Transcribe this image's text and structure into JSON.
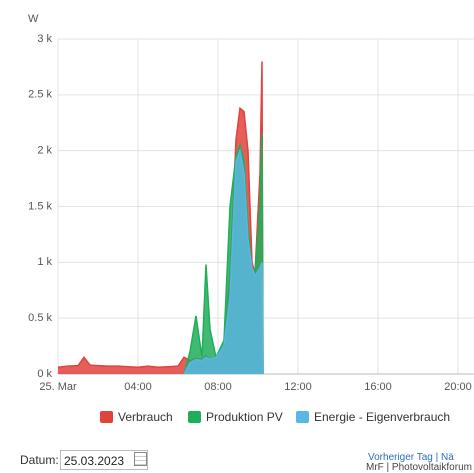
{
  "chart_data": {
    "type": "area",
    "y_label": "W",
    "x": [
      0,
      0.5,
      1,
      1.3,
      1.6,
      2,
      2.5,
      3,
      3.5,
      4,
      4.5,
      5,
      5.5,
      6,
      6.3,
      6.6,
      6.9,
      7.2,
      7.4,
      7.6,
      7.9,
      8.3,
      8.6,
      8.9,
      9.1,
      9.3,
      9.5,
      9.7,
      9.85,
      10.1,
      10.2,
      10.25
    ],
    "series": [
      {
        "name": "Verbrauch",
        "color": "#e2423c",
        "values": [
          60,
          70,
          75,
          150,
          80,
          75,
          70,
          70,
          65,
          60,
          70,
          60,
          65,
          70,
          150,
          120,
          140,
          130,
          160,
          130,
          150,
          250,
          900,
          2100,
          2380,
          2350,
          2000,
          1000,
          900,
          1800,
          2800,
          0
        ]
      },
      {
        "name": "Produktion PV",
        "color": "#1fae5a",
        "values": [
          null,
          null,
          null,
          null,
          null,
          null,
          null,
          null,
          null,
          null,
          null,
          null,
          null,
          null,
          0,
          200,
          520,
          150,
          980,
          400,
          150,
          300,
          1500,
          1950,
          2050,
          1900,
          1300,
          950,
          900,
          1500,
          2150,
          0
        ]
      },
      {
        "name": "Energie - Eigenverbrauch",
        "color": "#5ab6e2",
        "values": [
          null,
          null,
          null,
          null,
          null,
          null,
          null,
          null,
          null,
          null,
          null,
          null,
          null,
          null,
          0,
          100,
          130,
          120,
          150,
          130,
          150,
          250,
          700,
          1900,
          2000,
          1800,
          1200,
          950,
          880,
          950,
          1000,
          0
        ]
      }
    ],
    "xlim": [
      0,
      20.8
    ],
    "xticks": [
      {
        "value": 0,
        "label": "25. Mar"
      },
      {
        "value": 4,
        "label": "04:00"
      },
      {
        "value": 8,
        "label": "08:00"
      },
      {
        "value": 12,
        "label": "12:00"
      },
      {
        "value": 16,
        "label": "16:00"
      },
      {
        "value": 20,
        "label": "20:00"
      }
    ],
    "ylim": [
      0,
      3000
    ],
    "yticks": [
      {
        "value": 0,
        "label": "0 k"
      },
      {
        "value": 500,
        "label": "0.5 k"
      },
      {
        "value": 1000,
        "label": "1 k"
      },
      {
        "value": 1500,
        "label": "1.5 k"
      },
      {
        "value": 2000,
        "label": "2 k"
      },
      {
        "value": 2500,
        "label": "2.5 k"
      },
      {
        "value": 3000,
        "label": "3 k"
      }
    ],
    "grid": true,
    "legend": "bottom"
  },
  "ui": {
    "date_label": "Datum:",
    "date_value": "25.03.2023",
    "prev_link": "Vorheriger Tag",
    "next_link": "| Nä",
    "watermark": "MrF | Photovoltaikforum"
  }
}
